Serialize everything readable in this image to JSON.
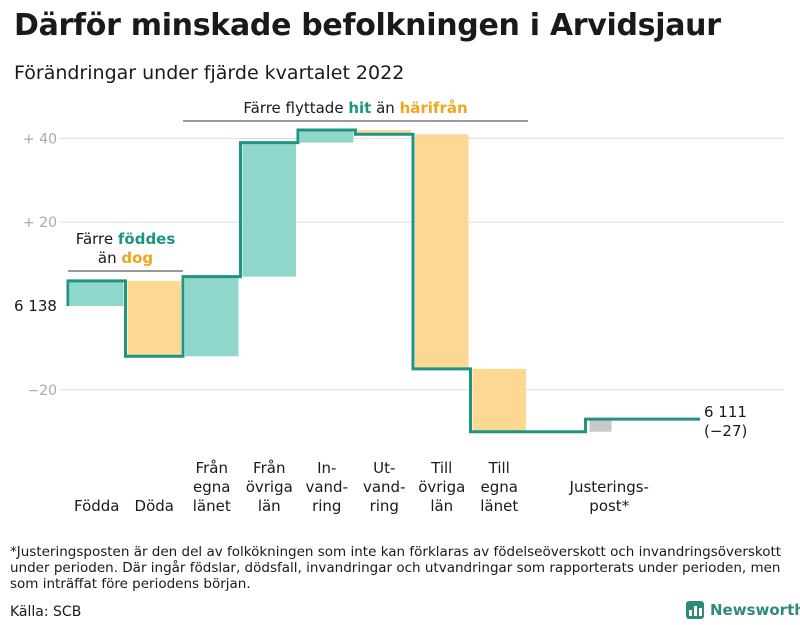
{
  "title": "Därför minskade befolkningen i Arvidsjaur",
  "subtitle": "Förändringar under fjärde kvartalet 2022",
  "footnote": "*Justeringsposten är den del av folkökningen som inte kan förklaras av födelseöverskott och invandringsöverskott under perioden. Där ingår födslar, dödsfall, invandringar och utvandringar som rapporterats under perioden, men som inträffat före periodens början.",
  "source": "Källa: SCB",
  "logo_text": "Newsworthy",
  "colors": {
    "increase": "#8fd6cb",
    "decrease": "#fcd892",
    "adjustment": "#c8c8c8",
    "line": "#1f9483",
    "teal_text": "#1f9483",
    "orange_text": "#f0a71e",
    "grid": "#dddddd",
    "tick_text": "#aaaaaa"
  },
  "chart_data": {
    "type": "waterfall",
    "start_value": 6138,
    "start_label": "6 138",
    "end_value": 6111,
    "end_label": "6 111",
    "end_change_label": "(−27)",
    "y_axis": {
      "unit": "change from start",
      "ticks": [
        {
          "value": 40,
          "label": "+ 40"
        },
        {
          "value": 20,
          "label": "+ 20"
        },
        {
          "value": -20,
          "label": "−20"
        }
      ]
    },
    "steps": [
      {
        "label": [
          "Födda"
        ],
        "change": 6,
        "kind": "increase"
      },
      {
        "label": [
          "Döda"
        ],
        "change": -18,
        "kind": "decrease"
      },
      {
        "label": [
          "Från",
          "egna",
          "länet"
        ],
        "change": 19,
        "kind": "increase"
      },
      {
        "label": [
          "Från",
          "övriga",
          "län"
        ],
        "change": 32,
        "kind": "increase"
      },
      {
        "label": [
          "In-",
          "vand-",
          "ring"
        ],
        "change": 3,
        "kind": "increase"
      },
      {
        "label": [
          "Ut-",
          "vand-",
          "ring"
        ],
        "change": -1,
        "kind": "decrease"
      },
      {
        "label": [
          "Till",
          "övriga",
          "län"
        ],
        "change": -56,
        "kind": "decrease"
      },
      {
        "label": [
          "Till",
          "egna",
          "länet"
        ],
        "change": -15,
        "kind": "decrease"
      },
      {
        "label": [
          ""
        ],
        "change": 0,
        "kind": "none"
      },
      {
        "label": [
          "Justerings-",
          "post*"
        ],
        "change": 3,
        "kind": "adjustment"
      }
    ],
    "annotations": [
      {
        "group_steps": [
          0,
          1
        ],
        "lines": [
          [
            {
              "text": "Färre ",
              "style": "plain"
            },
            {
              "text": "föddes",
              "style": "teal"
            }
          ],
          [
            {
              "text": "än ",
              "style": "plain"
            },
            {
              "text": "dog",
              "style": "orange"
            }
          ]
        ]
      },
      {
        "group_steps": [
          2,
          7
        ],
        "lines": [
          [
            {
              "text": "Färre flyttade ",
              "style": "plain"
            },
            {
              "text": "hit",
              "style": "teal"
            },
            {
              "text": " än ",
              "style": "plain"
            },
            {
              "text": "härifrån",
              "style": "orange"
            }
          ]
        ]
      }
    ]
  }
}
